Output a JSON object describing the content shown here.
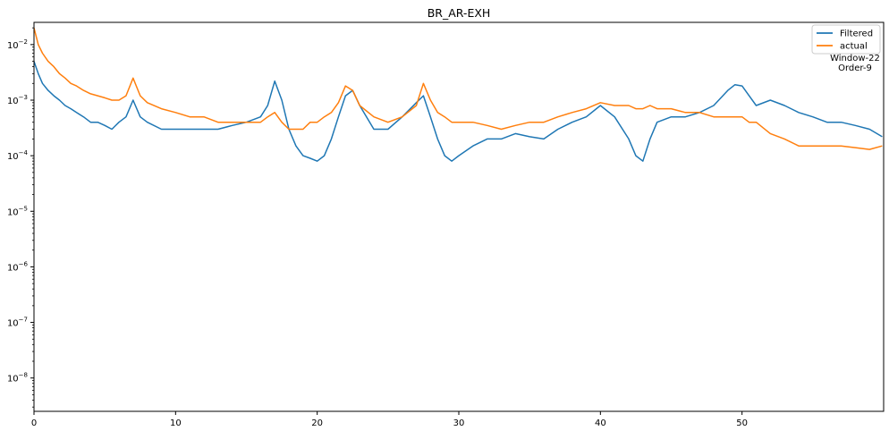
{
  "chart_data": {
    "type": "line",
    "title": "BR_AR-EXH",
    "xlabel": "",
    "ylabel": "",
    "xlim": [
      0,
      60
    ],
    "ylim_log10": [
      -8.6,
      -1.6
    ],
    "yscale": "log",
    "grid": false,
    "legend_position": "top-right",
    "x_ticks": [
      0,
      10,
      20,
      30,
      40,
      50
    ],
    "x_tick_labels": [
      "0",
      "10",
      "20",
      "30",
      "40",
      "50"
    ],
    "y_ticks_log10": [
      -8,
      -7,
      -6,
      -5,
      -4,
      -3,
      -2
    ],
    "y_tick_labels": [
      {
        "base": "10",
        "exp": "−8"
      },
      {
        "base": "10",
        "exp": "−7"
      },
      {
        "base": "10",
        "exp": "−6"
      },
      {
        "base": "10",
        "exp": "−5"
      },
      {
        "base": "10",
        "exp": "−4"
      },
      {
        "base": "10",
        "exp": "−3"
      },
      {
        "base": "10",
        "exp": "−2"
      }
    ],
    "annotation": [
      "Window-22",
      "Order-9"
    ],
    "series": [
      {
        "name": "Filtered",
        "color": "#1f77b4",
        "x": [
          0,
          0.3,
          0.6,
          1,
          1.4,
          1.8,
          2.2,
          2.6,
          3,
          3.5,
          4,
          4.5,
          5,
          5.5,
          6,
          6.5,
          7,
          7.5,
          8,
          9,
          10,
          11,
          12,
          13,
          14,
          15,
          16,
          16.5,
          17,
          17.5,
          18,
          18.5,
          19,
          19.5,
          20,
          20.5,
          21,
          21.5,
          22,
          22.5,
          23,
          24,
          25,
          26,
          27,
          27.5,
          28,
          28.5,
          29,
          29.5,
          30,
          31,
          32,
          33,
          34,
          35,
          36,
          37,
          38,
          39,
          40,
          41,
          42,
          42.5,
          43,
          43.5,
          44,
          45,
          46,
          47,
          48,
          49,
          49.5,
          50,
          50.5,
          51,
          52,
          53,
          54,
          55,
          56,
          57,
          58,
          59,
          59.9
        ],
        "y": [
          0.005,
          0.003,
          0.002,
          0.0015,
          0.0012,
          0.001,
          0.0008,
          0.0007,
          0.0006,
          0.0005,
          0.0004,
          0.0004,
          0.00035,
          0.0003,
          0.0004,
          0.0005,
          0.001,
          0.0005,
          0.0004,
          0.0003,
          0.0003,
          0.0003,
          0.0003,
          0.0003,
          0.00035,
          0.0004,
          0.0005,
          0.0008,
          0.0022,
          0.001,
          0.0003,
          0.00015,
          0.0001,
          9e-05,
          8e-05,
          0.0001,
          0.0002,
          0.0005,
          0.0012,
          0.0015,
          0.0008,
          0.0003,
          0.0003,
          0.0005,
          0.0009,
          0.0012,
          0.0005,
          0.0002,
          0.0001,
          8e-05,
          0.0001,
          0.00015,
          0.0002,
          0.0002,
          0.00025,
          0.00022,
          0.0002,
          0.0003,
          0.0004,
          0.0005,
          0.0008,
          0.0005,
          0.0002,
          0.0001,
          8e-05,
          0.0002,
          0.0004,
          0.0005,
          0.0005,
          0.0006,
          0.0008,
          0.0015,
          0.0019,
          0.0018,
          0.0012,
          0.0008,
          0.001,
          0.0008,
          0.0006,
          0.0005,
          0.0004,
          0.0004,
          0.00035,
          0.0003,
          0.00022
        ]
      },
      {
        "name": "actual",
        "color": "#ff7f0e",
        "x": [
          0,
          0.3,
          0.6,
          1,
          1.4,
          1.8,
          2.2,
          2.6,
          3,
          3.5,
          4,
          4.5,
          5,
          5.5,
          6,
          6.5,
          7,
          7.5,
          8,
          9,
          10,
          11,
          12,
          13,
          14,
          15,
          16,
          16.5,
          17,
          17.5,
          18,
          18.5,
          19,
          19.5,
          20,
          20.5,
          21,
          21.5,
          22,
          22.5,
          23,
          24,
          25,
          26,
          27,
          27.5,
          28,
          28.5,
          29,
          29.5,
          30,
          31,
          32,
          33,
          34,
          35,
          36,
          37,
          38,
          39,
          40,
          41,
          42,
          42.5,
          43,
          43.5,
          44,
          45,
          46,
          47,
          48,
          49,
          49.5,
          50,
          50.5,
          51,
          52,
          53,
          54,
          55,
          56,
          57,
          58,
          59,
          59.9
        ],
        "y": [
          0.02,
          0.01,
          0.007,
          0.005,
          0.004,
          0.003,
          0.0025,
          0.002,
          0.0018,
          0.0015,
          0.0013,
          0.0012,
          0.0011,
          0.001,
          0.001,
          0.0012,
          0.0025,
          0.0012,
          0.0009,
          0.0007,
          0.0006,
          0.0005,
          0.0005,
          0.0004,
          0.0004,
          0.0004,
          0.0004,
          0.0005,
          0.0006,
          0.0004,
          0.0003,
          0.0003,
          0.0003,
          0.0004,
          0.0004,
          0.0005,
          0.0006,
          0.0009,
          0.0018,
          0.0015,
          0.0008,
          0.0005,
          0.0004,
          0.0005,
          0.0008,
          0.002,
          0.001,
          0.0006,
          0.0005,
          0.0004,
          0.0004,
          0.0004,
          0.00035,
          0.0003,
          0.00035,
          0.0004,
          0.0004,
          0.0005,
          0.0006,
          0.0007,
          0.0009,
          0.0008,
          0.0008,
          0.0007,
          0.0007,
          0.0008,
          0.0007,
          0.0007,
          0.0006,
          0.0006,
          0.0005,
          0.0005,
          0.0005,
          0.0005,
          0.0004,
          0.0004,
          0.00025,
          0.0002,
          0.00015,
          0.00015,
          0.00015,
          0.00015,
          0.00014,
          0.00013,
          0.00015
        ]
      }
    ]
  }
}
